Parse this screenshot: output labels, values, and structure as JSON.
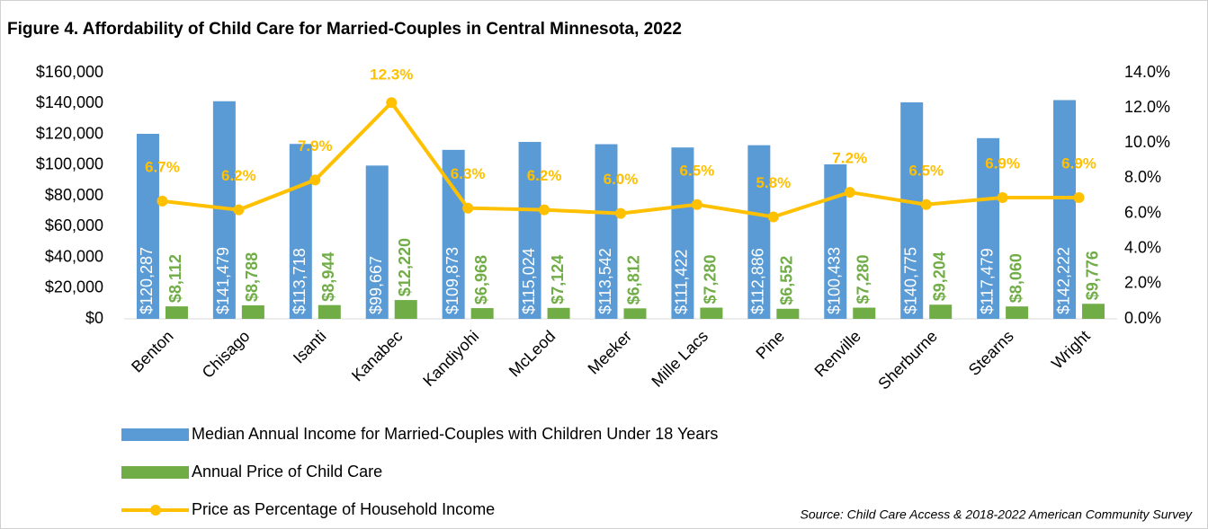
{
  "chart_data": {
    "type": "bar",
    "title": "Figure 4. Affordability of Child Care for Married-Couples in Central Minnesota, 2022",
    "source": "Source: Child Care Access & 2018-2022 American Community Survey",
    "categories": [
      "Benton",
      "Chisago",
      "Isanti",
      "Kanabec",
      "Kandiyohi",
      "McLeod",
      "Meeker",
      "Mille Lacs",
      "Pine",
      "Renville",
      "Sherburne",
      "Stearns",
      "Wright"
    ],
    "series": [
      {
        "name": "Median Annual Income for Married-Couples with Children Under 18 Years",
        "type": "bar",
        "color": "#5b9bd5",
        "values": [
          120287,
          141479,
          113718,
          99667,
          109873,
          115024,
          113542,
          111422,
          112886,
          100433,
          140775,
          117479,
          142222
        ],
        "value_labels": [
          "$120,287",
          "$141,479",
          "$113,718",
          "$99,667",
          "$109,873",
          "$115,024",
          "$113,542",
          "$111,422",
          "$112,886",
          "$100,433",
          "$140,775",
          "$117,479",
          "$142,222"
        ],
        "label_color": "#ffffff"
      },
      {
        "name": "Annual Price of Child Care",
        "type": "bar",
        "color": "#70ad47",
        "values": [
          8112,
          8788,
          8944,
          12220,
          6968,
          7124,
          6812,
          7280,
          6552,
          7280,
          9204,
          8060,
          9776
        ],
        "value_labels": [
          "$8,112",
          "$8,788",
          "$8,944",
          "$12,220",
          "$6,968",
          "$7,124",
          "$6,812",
          "$7,280",
          "$6,552",
          "$7,280",
          "$9,204",
          "$8,060",
          "$9,776"
        ],
        "label_color": "#70ad47"
      },
      {
        "name": "Price as Percentage of Household Income",
        "type": "line",
        "axis": "y2",
        "color": "#ffc000",
        "values": [
          6.7,
          6.2,
          7.9,
          12.3,
          6.3,
          6.2,
          6.0,
          6.5,
          5.8,
          7.2,
          6.5,
          6.9,
          6.9
        ],
        "value_labels": [
          "6.7%",
          "6.2%",
          "7.9%",
          "12.3%",
          "6.3%",
          "6.2%",
          "6.0%",
          "6.5%",
          "5.8%",
          "7.2%",
          "6.5%",
          "6.9%",
          "6.9%"
        ],
        "label_color": "#ffc000"
      }
    ],
    "ylim": [
      0,
      160000
    ],
    "yticks": [
      {
        "value": 0,
        "label": "$0"
      },
      {
        "value": 20000,
        "label": "$20,000"
      },
      {
        "value": 40000,
        "label": "$40,000"
      },
      {
        "value": 60000,
        "label": "$60,000"
      },
      {
        "value": 80000,
        "label": "$80,000"
      },
      {
        "value": 100000,
        "label": "$100,000"
      },
      {
        "value": 120000,
        "label": "$120,000"
      },
      {
        "value": 140000,
        "label": "$140,000"
      },
      {
        "value": 160000,
        "label": "$160,000"
      }
    ],
    "y2lim": [
      0,
      14
    ],
    "y2ticks": [
      {
        "value": 0,
        "label": "0.0%"
      },
      {
        "value": 2,
        "label": "2.0%"
      },
      {
        "value": 4,
        "label": "4.0%"
      },
      {
        "value": 6,
        "label": "6.0%"
      },
      {
        "value": 8,
        "label": "8.0%"
      },
      {
        "value": 10,
        "label": "10.0%"
      },
      {
        "value": 12,
        "label": "12.0%"
      },
      {
        "value": 14,
        "label": "14.0%"
      }
    ],
    "grid": false,
    "legend": "bottom"
  }
}
